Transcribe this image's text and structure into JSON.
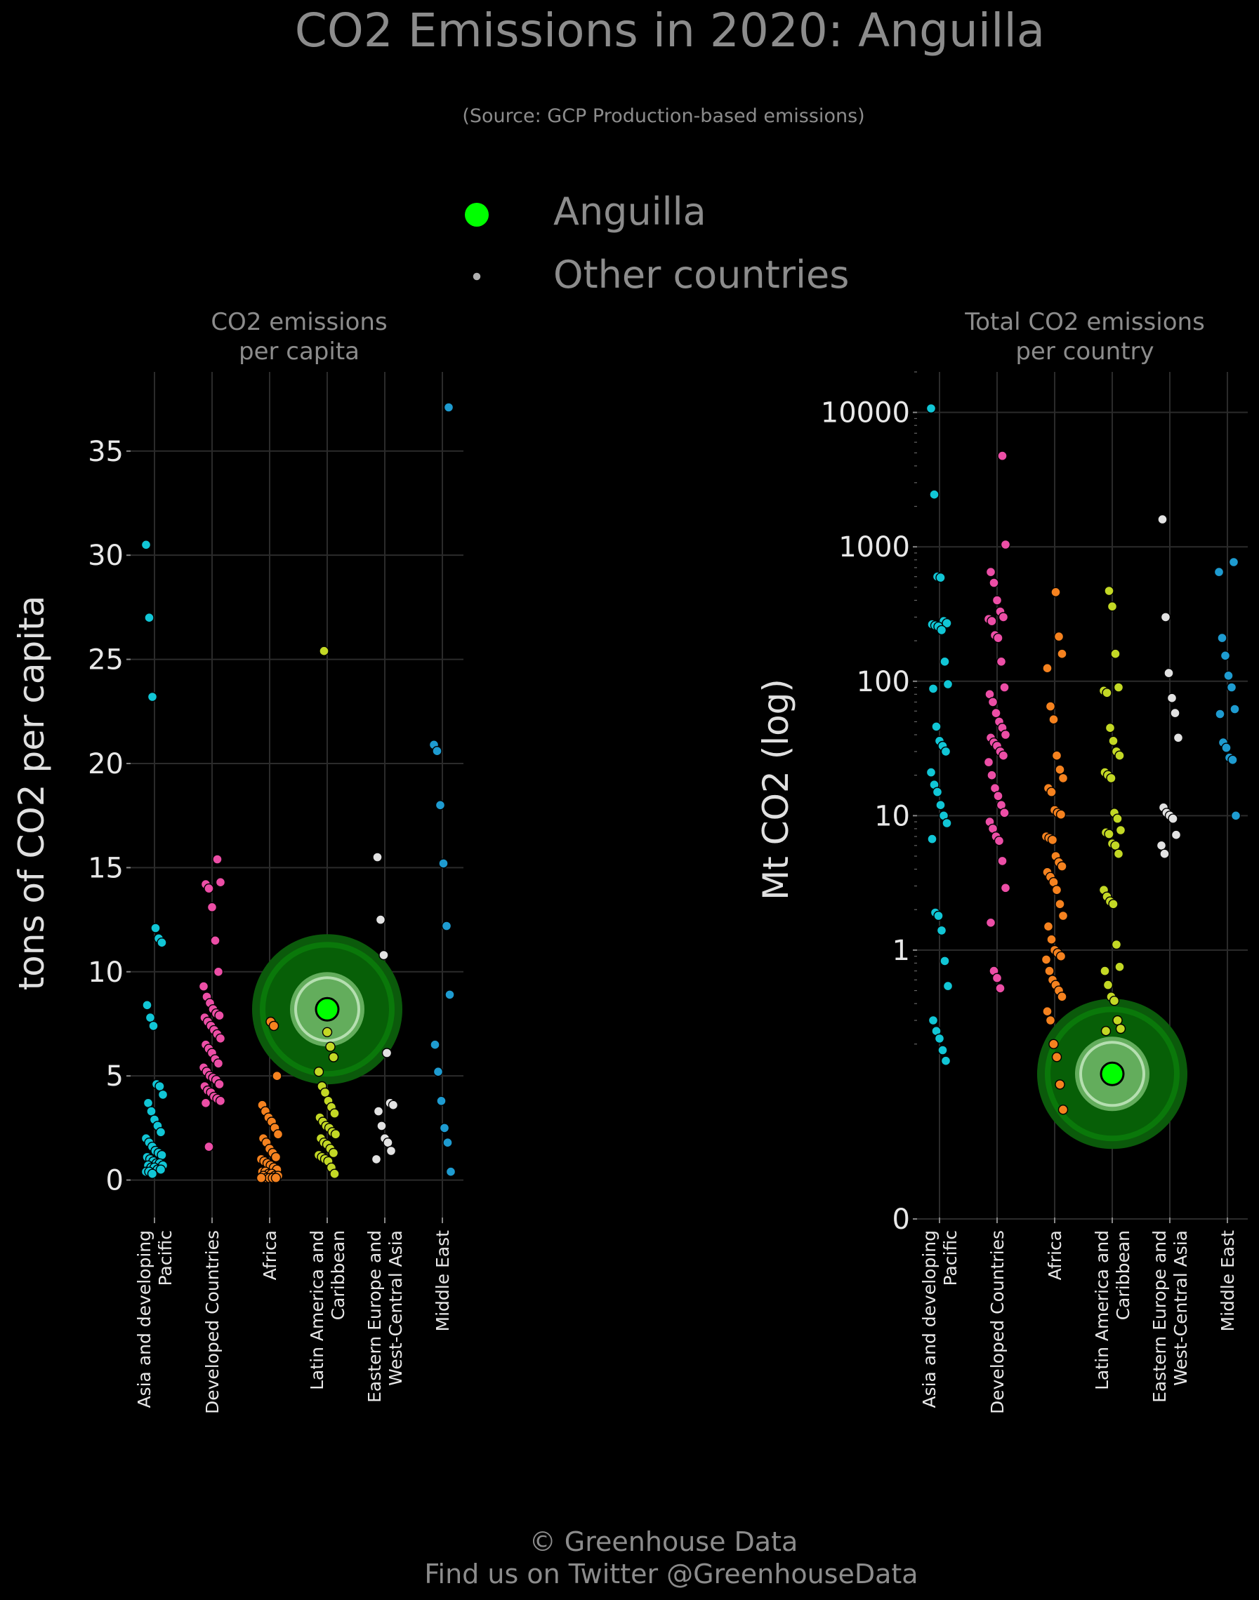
{
  "title": "CO2 Emissions in 2020: Anguilla",
  "subtitle": "(Source: GCP Production-based emissions)",
  "legend": {
    "highlight_label": "Anguilla",
    "others_label": "Other countries",
    "highlight_color": "#00ff00",
    "others_color": "#b0b0b0"
  },
  "footer": {
    "line1": "© Greenhouse Data",
    "line2": "Find us on Twitter @GreenhouseData"
  },
  "colors": {
    "Asia and developing Pacific": "#11c6d6",
    "Developed Countries": "#ec4ea6",
    "Africa": "#f5821f",
    "Latin America and Caribbean": "#c3d825",
    "Eastern Europe and West-Central Asia": "#e2e2e2",
    "Middle East": "#1e9bd0"
  },
  "chart_data": [
    {
      "type": "scatter",
      "title": "CO2 emissions\nper capita",
      "ylabel": "tons of CO2 per capita",
      "ylim": [
        -1.8,
        38.8
      ],
      "yscale": "linear",
      "yticks": [
        0,
        5,
        10,
        15,
        20,
        25,
        30,
        35
      ],
      "ytick_labels": [
        "0",
        "5",
        "10",
        "15",
        "20",
        "25",
        "30",
        "35"
      ],
      "grid": true,
      "categories": [
        "Asia and developing Pacific",
        "Developed Countries",
        "Africa",
        "Latin America and Caribbean",
        "Eastern Europe and West-Central Asia",
        "Middle East"
      ],
      "category_labels": [
        "Asia and developing\nPacific",
        "Developed Countries",
        "Africa",
        "Latin America and\nCaribbean",
        "Eastern Europe and\nWest-Central Asia",
        "Middle East"
      ],
      "highlight": {
        "name": "Anguilla",
        "category": "Latin America and Caribbean",
        "value": 8.2
      },
      "series": [
        {
          "category": "Asia and developing Pacific",
          "values": [
            30.5,
            27.0,
            23.2,
            12.1,
            11.6,
            11.4,
            8.4,
            7.8,
            7.4,
            4.6,
            4.5,
            4.1,
            3.7,
            3.3,
            2.9,
            2.6,
            2.3,
            2.0,
            1.8,
            1.6,
            1.4,
            1.3,
            1.2,
            1.1,
            1.0,
            0.9,
            0.8,
            0.8,
            0.7,
            0.7,
            0.6,
            0.6,
            0.5,
            0.5,
            0.4,
            0.4,
            0.3
          ]
        },
        {
          "category": "Developed Countries",
          "values": [
            15.4,
            14.3,
            14.2,
            14.0,
            13.1,
            11.5,
            10.0,
            9.3,
            8.8,
            8.5,
            8.2,
            8.0,
            7.9,
            7.8,
            7.6,
            7.4,
            7.2,
            7.0,
            6.8,
            6.5,
            6.3,
            6.1,
            5.8,
            5.6,
            5.4,
            5.2,
            5.0,
            4.9,
            4.8,
            4.6,
            4.5,
            4.3,
            4.2,
            4.0,
            3.9,
            3.8,
            3.7,
            1.6
          ]
        },
        {
          "category": "Africa",
          "values": [
            7.6,
            7.4,
            5.0,
            3.6,
            3.3,
            3.0,
            2.8,
            2.5,
            2.2,
            2.0,
            1.8,
            1.5,
            1.3,
            1.1,
            1.0,
            0.9,
            0.8,
            0.7,
            0.6,
            0.5,
            0.4,
            0.4,
            0.3,
            0.3,
            0.2,
            0.2,
            0.2,
            0.1,
            0.1,
            0.1,
            0.1,
            0.1
          ]
        },
        {
          "category": "Latin America and Caribbean",
          "values": [
            25.4,
            7.1,
            6.4,
            5.9,
            5.2,
            4.5,
            4.2,
            3.8,
            3.5,
            3.2,
            3.0,
            2.8,
            2.6,
            2.5,
            2.3,
            2.2,
            2.0,
            1.8,
            1.7,
            1.5,
            1.3,
            1.2,
            1.1,
            1.0,
            0.9,
            0.6,
            0.3
          ]
        },
        {
          "category": "Eastern Europe and West-Central Asia",
          "values": [
            15.5,
            12.5,
            10.8,
            6.1,
            3.7,
            3.6,
            3.3,
            2.6,
            2.0,
            1.8,
            1.4,
            1.0
          ]
        },
        {
          "category": "Middle East",
          "values": [
            37.1,
            20.9,
            20.6,
            18.0,
            15.2,
            12.2,
            8.9,
            6.5,
            5.2,
            3.8,
            2.5,
            1.8,
            0.4
          ]
        }
      ]
    },
    {
      "type": "scatter",
      "title": "Total CO2 emissions\nper country",
      "ylabel": "Mt CO2 (log)",
      "yscale": "log",
      "ylim": [
        0.01,
        20000
      ],
      "yticks": [
        0.01,
        1,
        10,
        100,
        1000,
        10000
      ],
      "ytick_labels": [
        "0",
        "1",
        "10",
        "100",
        "1000",
        "10000"
      ],
      "grid": true,
      "categories": [
        "Asia and developing Pacific",
        "Developed Countries",
        "Africa",
        "Latin America and Caribbean",
        "Eastern Europe and West-Central Asia",
        "Middle East"
      ],
      "category_labels": [
        "Asia and developing\nPacific",
        "Developed Countries",
        "Africa",
        "Latin America and\nCaribbean",
        "Eastern Europe and\nWest-Central Asia",
        "Middle East"
      ],
      "highlight": {
        "name": "Anguilla",
        "category": "Latin America and Caribbean",
        "value": 0.12
      },
      "series": [
        {
          "category": "Asia and developing Pacific",
          "values": [
            10700,
            2450,
            600,
            590,
            280,
            270,
            265,
            260,
            255,
            240,
            140,
            95,
            88,
            46,
            36,
            33,
            30,
            21,
            17,
            15,
            12,
            10,
            8.8,
            6.7,
            1.9,
            1.8,
            1.4,
            0.83,
            0.54,
            0.3,
            0.25,
            0.22,
            0.18,
            0.15
          ]
        },
        {
          "category": "Developed Countries",
          "values": [
            4750,
            1040,
            650,
            540,
            400,
            330,
            300,
            290,
            280,
            220,
            210,
            140,
            90,
            80,
            70,
            58,
            50,
            45,
            40,
            38,
            35,
            33,
            30,
            28,
            25,
            20,
            16,
            14,
            12,
            10.5,
            9.0,
            8.0,
            7.0,
            6.5,
            4.6,
            2.9,
            1.6,
            0.7,
            0.62,
            0.52
          ]
        },
        {
          "category": "Africa",
          "values": [
            460,
            215,
            160,
            125,
            65,
            52,
            28,
            22,
            19,
            16,
            15,
            11,
            10.5,
            10.2,
            7,
            6.8,
            6.6,
            5.0,
            4.5,
            4.2,
            3.8,
            3.5,
            3.2,
            2.8,
            2.2,
            1.8,
            1.5,
            1.2,
            1.0,
            0.95,
            0.9,
            0.85,
            0.7,
            0.6,
            0.55,
            0.5,
            0.45,
            0.35,
            0.3,
            0.2,
            0.16,
            0.1,
            0.065
          ]
        },
        {
          "category": "Latin America and Caribbean",
          "values": [
            470,
            360,
            160,
            90,
            85,
            82,
            45,
            36,
            30,
            28,
            21,
            20,
            19,
            10.5,
            9.5,
            7.8,
            7.5,
            7.3,
            6.2,
            6.0,
            5.2,
            2.8,
            2.5,
            2.3,
            2.2,
            1.1,
            0.75,
            0.7,
            0.55,
            0.45,
            0.42,
            0.3,
            0.26,
            0.25
          ]
        },
        {
          "category": "Eastern Europe and West-Central Asia",
          "values": [
            1600,
            300,
            115,
            75,
            58,
            38,
            11.5,
            10.5,
            10,
            9.5,
            7.2,
            6.0,
            5.2
          ]
        },
        {
          "category": "Middle East",
          "values": [
            770,
            650,
            210,
            155,
            110,
            90,
            62,
            57,
            35,
            32,
            27,
            26,
            10
          ]
        }
      ]
    }
  ]
}
